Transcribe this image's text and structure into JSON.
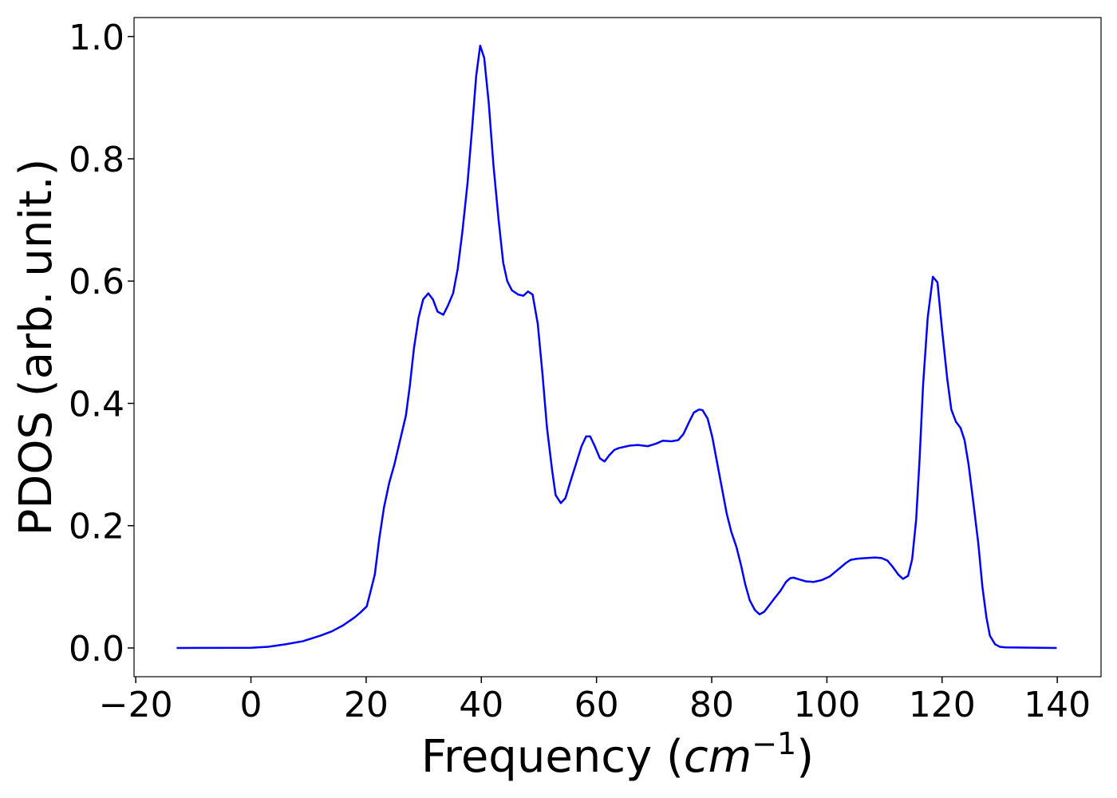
{
  "chart_data": {
    "type": "line",
    "xlabel": [
      "Frequency (",
      "cm",
      "−1",
      ")"
    ],
    "ylabel": "PDOS (arb. unit.)",
    "xlim": [
      -20.3,
      147.6
    ],
    "ylim": [
      -0.047,
      1.031
    ],
    "xticks": [
      {
        "value": -20,
        "label": "−20"
      },
      0,
      20,
      40,
      60,
      80,
      100,
      120,
      140
    ],
    "yticks": [
      {
        "value": 0,
        "label": "0.0"
      },
      0.2,
      0.4,
      0.6,
      0.8,
      {
        "value": 1,
        "label": "1.0"
      }
    ],
    "grid": false,
    "series": [
      {
        "color": "#0000ff",
        "x": [
          -12.9,
          0,
          3,
          6,
          9,
          12,
          14,
          16,
          18,
          19,
          20.1,
          20.7,
          21.5,
          22.3,
          23.1,
          24,
          24.9,
          25.9,
          26.9,
          27.6,
          28.3,
          29.1,
          29.9,
          30.8,
          31.6,
          32.4,
          33.4,
          34.2,
          35.1,
          35.9,
          36.7,
          37.6,
          38.4,
          39.1,
          39.8,
          40.5,
          41.3,
          42.1,
          43,
          43.8,
          44.5,
          45.3,
          46.4,
          47.3,
          48.1,
          48.9,
          49.8,
          50.6,
          51.4,
          52.3,
          52.9,
          53.8,
          54.6,
          55.4,
          56.4,
          57.4,
          58.2,
          58.9,
          59.7,
          60.6,
          61.4,
          62.2,
          63.1,
          63.9,
          65.8,
          67.2,
          68.9,
          70.3,
          71.5,
          73,
          74.2,
          75.1,
          76.1,
          76.9,
          77.8,
          78.4,
          79.3,
          80.1,
          80.9,
          81.8,
          82.6,
          83.4,
          84.3,
          85.1,
          85.8,
          86.6,
          87.5,
          88.3,
          89.1,
          90,
          90.8,
          91.9,
          92.9,
          93.6,
          94.2,
          94.9,
          96.3,
          97.7,
          99.1,
          100.5,
          101.9,
          103.3,
          104.1,
          105.3,
          106.7,
          108.4,
          109.5,
          110.5,
          111.4,
          112.4,
          113.2,
          114.1,
          114.8,
          115.5,
          116.1,
          116.7,
          117.5,
          118.4,
          119.2,
          120,
          120.9,
          121.6,
          122.4,
          123.2,
          123.9,
          124.6,
          125.4,
          126.3,
          127,
          127.7,
          128.3,
          129.2,
          130,
          131,
          139.9
        ],
        "values": [
          0,
          0.0003,
          0.002,
          0.006,
          0.011,
          0.02,
          0.027,
          0.037,
          0.05,
          0.058,
          0.068,
          0.09,
          0.12,
          0.18,
          0.23,
          0.27,
          0.3,
          0.34,
          0.38,
          0.43,
          0.49,
          0.54,
          0.57,
          0.58,
          0.57,
          0.55,
          0.545,
          0.56,
          0.58,
          0.62,
          0.68,
          0.76,
          0.85,
          0.935,
          0.985,
          0.965,
          0.89,
          0.79,
          0.7,
          0.63,
          0.6,
          0.585,
          0.578,
          0.576,
          0.583,
          0.578,
          0.53,
          0.45,
          0.36,
          0.29,
          0.25,
          0.237,
          0.245,
          0.27,
          0.3,
          0.33,
          0.346,
          0.346,
          0.33,
          0.31,
          0.305,
          0.315,
          0.324,
          0.327,
          0.331,
          0.332,
          0.33,
          0.334,
          0.339,
          0.338,
          0.34,
          0.35,
          0.37,
          0.385,
          0.39,
          0.389,
          0.375,
          0.345,
          0.305,
          0.26,
          0.22,
          0.19,
          0.165,
          0.135,
          0.105,
          0.078,
          0.062,
          0.055,
          0.059,
          0.07,
          0.08,
          0.093,
          0.108,
          0.114,
          0.115,
          0.113,
          0.109,
          0.108,
          0.111,
          0.117,
          0.128,
          0.139,
          0.144,
          0.146,
          0.147,
          0.148,
          0.147,
          0.143,
          0.133,
          0.12,
          0.113,
          0.118,
          0.145,
          0.21,
          0.31,
          0.43,
          0.54,
          0.607,
          0.598,
          0.52,
          0.44,
          0.39,
          0.37,
          0.36,
          0.34,
          0.3,
          0.24,
          0.17,
          0.1,
          0.05,
          0.02,
          0.006,
          0.002,
          0.001,
          0
        ]
      }
    ]
  }
}
